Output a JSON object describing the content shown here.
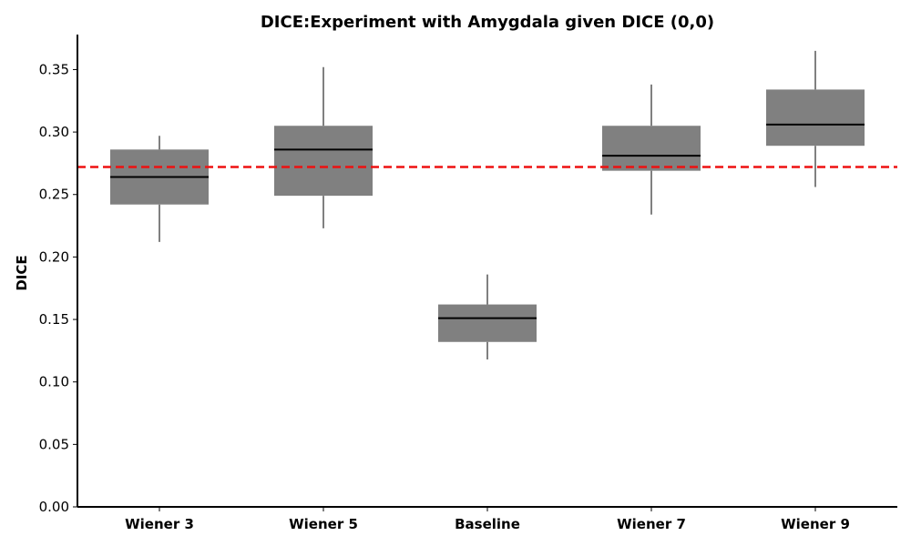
{
  "chart_data": {
    "type": "box",
    "title": "DICE:Experiment with Amygdala given DICE (0,0)",
    "xlabel": "",
    "ylabel": "DICE",
    "ylim": [
      0.0,
      0.378
    ],
    "yticks": [
      "0.00",
      "0.05",
      "0.10",
      "0.15",
      "0.20",
      "0.25",
      "0.30",
      "0.35"
    ],
    "categories": [
      "Wiener 3",
      "Wiener 5",
      "Baseline",
      "Wiener 7",
      "Wiener 9"
    ],
    "boxes": [
      {
        "whisker_low": 0.212,
        "q1": 0.242,
        "median": 0.264,
        "q3": 0.286,
        "whisker_high": 0.297
      },
      {
        "whisker_low": 0.223,
        "q1": 0.249,
        "median": 0.286,
        "q3": 0.305,
        "whisker_high": 0.352
      },
      {
        "whisker_low": 0.118,
        "q1": 0.132,
        "median": 0.151,
        "q3": 0.162,
        "whisker_high": 0.186
      },
      {
        "whisker_low": 0.234,
        "q1": 0.269,
        "median": 0.281,
        "q3": 0.305,
        "whisker_high": 0.338
      },
      {
        "whisker_low": 0.256,
        "q1": 0.289,
        "median": 0.306,
        "q3": 0.334,
        "whisker_high": 0.365
      }
    ],
    "reference_line": {
      "value": 0.272,
      "style": "dashed"
    },
    "grid": false,
    "colors": {
      "box": "#808080",
      "median": "#000000",
      "whisker": "#000000",
      "reference": "#ee1111",
      "axis": "#000000"
    }
  }
}
